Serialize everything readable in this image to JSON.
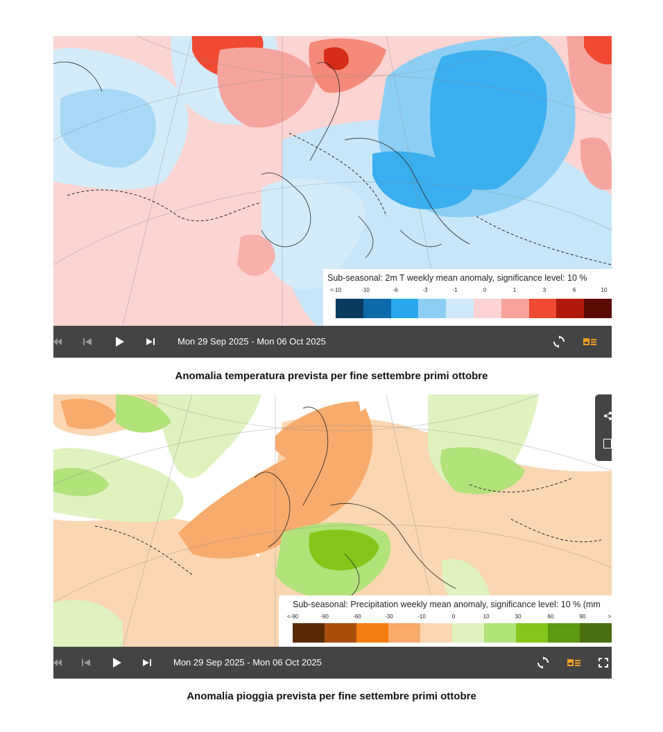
{
  "panels": [
    {
      "legend_title": "Sub-seasonal: 2m T weekly mean anomaly, significance level: 10 %",
      "ticks": [
        "<-10",
        "-10",
        "-6",
        "-3",
        "-1",
        "0",
        "1",
        "3",
        "6",
        "10"
      ],
      "colors": [
        "#0a3a5e",
        "#0c6aa8",
        "#29a8ee",
        "#8dcff4",
        "#cfe9f9",
        "#fcd2d2",
        "#f7a39b",
        "#f04a33",
        "#b01a0c",
        "#5c0a04"
      ],
      "date_range": "Mon 29 Sep 2025 - Mon 06 Oct 2025",
      "caption": "Anomalia temperatura prevista per fine settembre primi ottobre"
    },
    {
      "legend_title": "Sub-seasonal: Precipitation weekly mean anomaly, significance level: 10 % (mm",
      "ticks": [
        "<-90",
        "-90",
        "-60",
        "-30",
        "-10",
        "0",
        "10",
        "30",
        "60",
        "90",
        ">"
      ],
      "colors": [
        "#5a2a06",
        "#a84e0c",
        "#f57c0e",
        "#f7ab6c",
        "#fbd6b2",
        "#dff2c0",
        "#b2e27a",
        "#86c61a",
        "#5d9a12",
        "#4a6e10"
      ],
      "date_range": "Mon 29 Sep 2025 - Mon 06 Oct 2025",
      "caption": "Anomalia pioggia prevista per fine settembre primi ottobre"
    }
  ],
  "icons": {
    "first": "skip-back-icon",
    "prev": "step-back-icon",
    "play": "play-icon",
    "next": "step-forward-icon",
    "refresh": "refresh-icon",
    "legend": "legend-toggle-icon",
    "fullscreen": "fullscreen-icon",
    "share": "share-icon"
  }
}
